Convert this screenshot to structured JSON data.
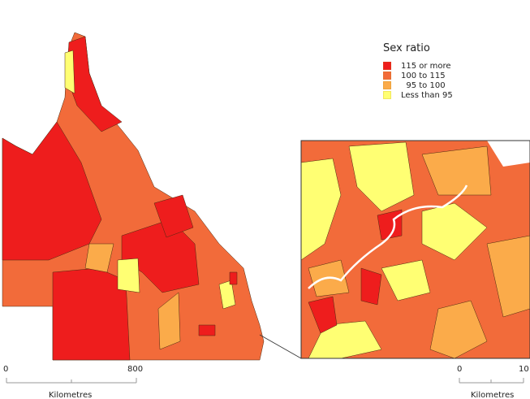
{
  "legend": {
    "title": "Sex ratio",
    "items": [
      {
        "label": "115 or more",
        "color": "#ee1d1d"
      },
      {
        "label": "100 to 115",
        "color": "#f26b3a"
      },
      {
        "label": "  95 to 100",
        "color": "#fbab4a"
      },
      {
        "label": "Less than 95",
        "color": "#ffff73"
      }
    ]
  },
  "main_scale": {
    "start": "0",
    "end": "800",
    "unit": "Kilometres"
  },
  "inset_scale": {
    "start": "0",
    "end": "10",
    "unit": "Kilometres"
  },
  "colors": {
    "border": "#3a2a1a",
    "river": "#ffffff"
  }
}
